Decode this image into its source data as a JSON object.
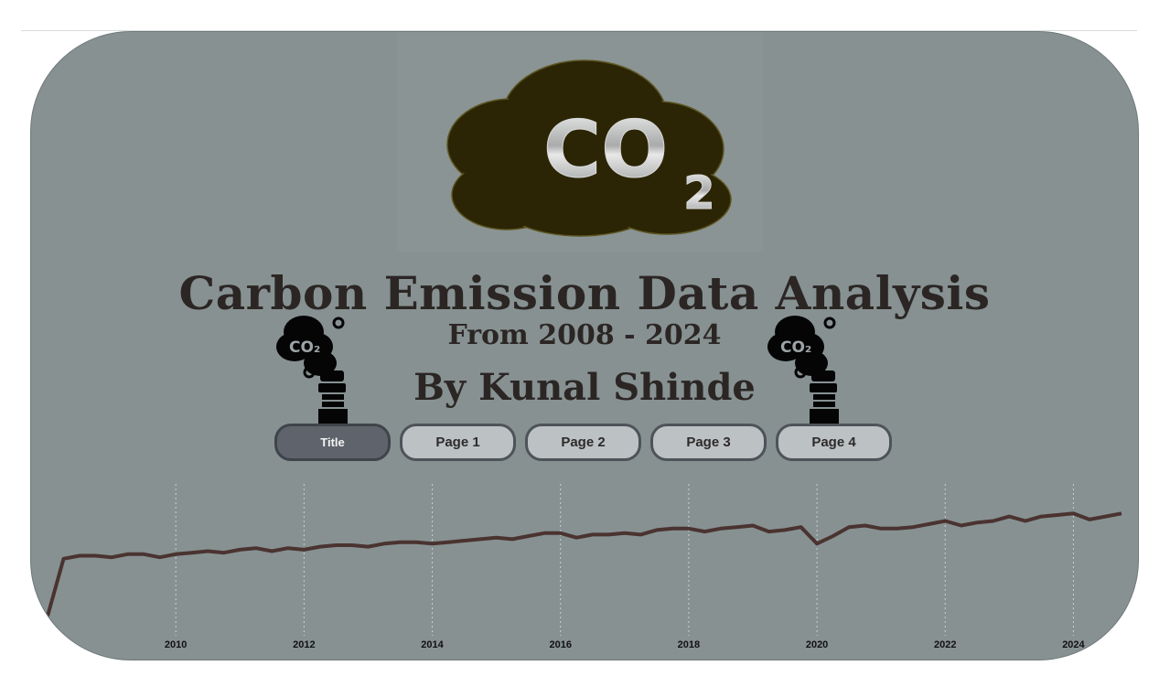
{
  "header": {
    "title": "Carbon Emission Data Analysis",
    "subtitle": "From 2008 - 2024",
    "author": "By Kunal Shinde"
  },
  "hero_icon": {
    "name": "co2-cloud-icon",
    "text": "CO",
    "subscript": "2",
    "color": "#2b2505"
  },
  "factory_icon": {
    "name": "co2-factory-icon",
    "text": "CO₂"
  },
  "nav": {
    "buttons": [
      {
        "label": "Title",
        "active": true
      },
      {
        "label": "Page 1",
        "active": false
      },
      {
        "label": "Page 2",
        "active": false
      },
      {
        "label": "Page 3",
        "active": false
      },
      {
        "label": "Page 4",
        "active": false
      }
    ]
  },
  "colors": {
    "background": "#879192",
    "line": "#4a3330",
    "text": "#2b2624",
    "active_button": "#5e636c",
    "button": "#bcc1c4"
  },
  "chart_data": {
    "type": "line",
    "x_ticks": [
      "2010",
      "2012",
      "2014",
      "2016",
      "2018",
      "2020",
      "2022",
      "2024"
    ],
    "xlim": [
      2008.0,
      2024.75
    ],
    "ylim": [
      0,
      100
    ],
    "grid": "vertical-dotted",
    "series": [
      {
        "x": [
          2008.0,
          2008.25,
          2008.5,
          2008.75,
          2009.0,
          2009.25,
          2009.5,
          2009.75,
          2010.0,
          2010.25,
          2010.5,
          2010.75,
          2011.0,
          2011.25,
          2011.5,
          2011.75,
          2012.0,
          2012.25,
          2012.5,
          2012.75,
          2013.0,
          2013.25,
          2013.5,
          2013.75,
          2014.0,
          2014.25,
          2014.5,
          2014.75,
          2015.0,
          2015.25,
          2015.5,
          2015.75,
          2016.0,
          2016.25,
          2016.5,
          2016.75,
          2017.0,
          2017.25,
          2017.5,
          2017.75,
          2018.0,
          2018.25,
          2018.5,
          2018.75,
          2019.0,
          2019.25,
          2019.5,
          2019.75,
          2020.0,
          2020.25,
          2020.5,
          2020.75,
          2021.0,
          2021.25,
          2021.5,
          2021.75,
          2022.0,
          2022.25,
          2022.5,
          2022.75,
          2023.0,
          2023.25,
          2023.5,
          2023.75,
          2024.0,
          2024.25,
          2024.5,
          2024.75
        ],
        "values": [
          10,
          48,
          50,
          50,
          49,
          51,
          51,
          49,
          51,
          52,
          53,
          52,
          54,
          55,
          53,
          55,
          54,
          56,
          57,
          57,
          56,
          58,
          59,
          59,
          58,
          59,
          60,
          61,
          62,
          61,
          63,
          65,
          65,
          62,
          64,
          64,
          65,
          64,
          67,
          68,
          68,
          66,
          68,
          69,
          70,
          66,
          67,
          69,
          58,
          63,
          69,
          70,
          68,
          68,
          69,
          71,
          73,
          70,
          72,
          73,
          76,
          73,
          76,
          77,
          78,
          74,
          76,
          78
        ]
      }
    ]
  }
}
